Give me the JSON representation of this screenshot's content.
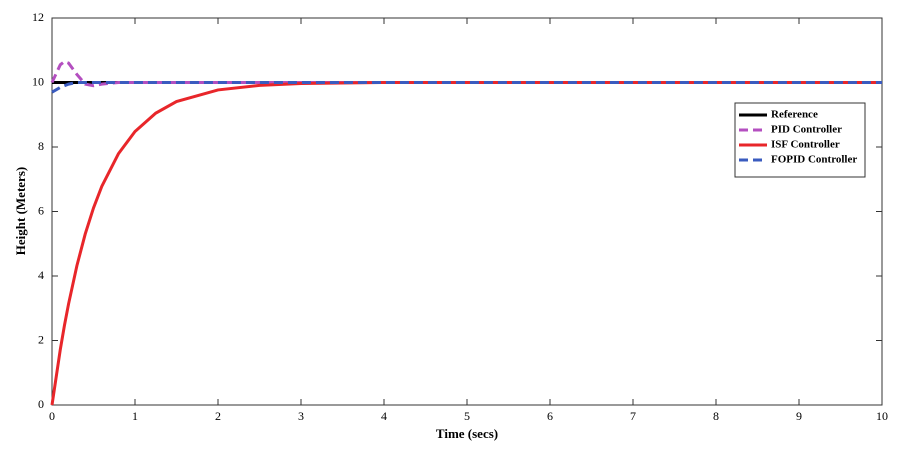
{
  "chart_data": {
    "type": "line",
    "xlabel": "Time (secs)",
    "ylabel": "Height (Meters)",
    "x": [
      0,
      0.1,
      0.15,
      0.2,
      0.3,
      0.4,
      0.5,
      0.6,
      0.8,
      1,
      1.25,
      1.5,
      2,
      2.5,
      3,
      4,
      5,
      6,
      7,
      8,
      9,
      10
    ],
    "series": [
      {
        "name": "Reference",
        "color": "#000000",
        "linestyle": "solid",
        "values": [
          10,
          10,
          10,
          10,
          10,
          10,
          10,
          10,
          10,
          10,
          10,
          10,
          10,
          10,
          10,
          10,
          10,
          10,
          10,
          10,
          10,
          10
        ]
      },
      {
        "name": "PID Controller",
        "color": "#b44fc0",
        "linestyle": "dashed",
        "values": [
          10,
          10.55,
          10.65,
          10.6,
          10.25,
          9.95,
          9.9,
          9.95,
          10,
          10,
          10,
          10,
          10,
          10,
          10,
          10,
          10,
          10,
          10,
          10,
          10,
          10
        ]
      },
      {
        "name": "ISF Controller",
        "color": "#e8262a",
        "linestyle": "solid",
        "values": [
          0,
          1.72,
          2.47,
          3.14,
          4.32,
          5.3,
          6.11,
          6.78,
          7.79,
          8.48,
          9.05,
          9.41,
          9.77,
          9.91,
          9.97,
          10,
          10,
          10,
          10,
          10,
          10,
          10
        ]
      },
      {
        "name": "FOPID Controller",
        "color": "#3a5bbf",
        "linestyle": "dashed",
        "values": [
          9.7,
          9.85,
          9.9,
          9.95,
          10,
          10,
          10,
          10,
          10,
          10,
          10,
          10,
          10,
          10,
          10,
          10,
          10,
          10,
          10,
          10,
          10,
          10
        ]
      }
    ],
    "xlim": [
      0,
      10
    ],
    "xticks": [
      0,
      1,
      2,
      3,
      4,
      5,
      6,
      7,
      8,
      9,
      10
    ],
    "ylim": [
      0,
      12
    ],
    "yticks": [
      0,
      2,
      4,
      6,
      8,
      10,
      12
    ],
    "grid": false,
    "legend": "upper right"
  }
}
